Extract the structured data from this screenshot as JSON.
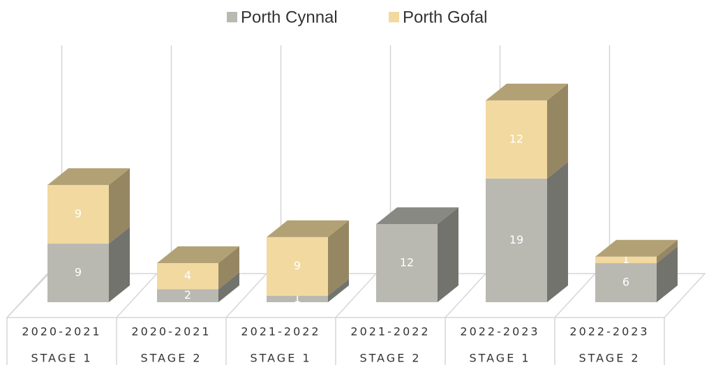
{
  "chart_data": {
    "type": "bar3d_stacked",
    "categories": [
      [
        "2020-2021",
        "STAGE 1"
      ],
      [
        "2020-2021",
        "STAGE 2"
      ],
      [
        "2021-2022",
        "STAGE 1"
      ],
      [
        "2021-2022",
        "STAGE 2"
      ],
      [
        "2022-2023",
        "STAGE 1"
      ],
      [
        "2022-2023",
        "STAGE 2"
      ]
    ],
    "series": [
      {
        "name": "Porth Cynnal",
        "color": "#b9b9b2",
        "values": [
          9,
          2,
          1,
          12,
          19,
          6
        ]
      },
      {
        "name": "Porth Gofal",
        "color": "#f2d9a0",
        "values": [
          9,
          4,
          9,
          null,
          12,
          1
        ]
      }
    ],
    "ylim": [
      0,
      40
    ],
    "legend": "top"
  }
}
